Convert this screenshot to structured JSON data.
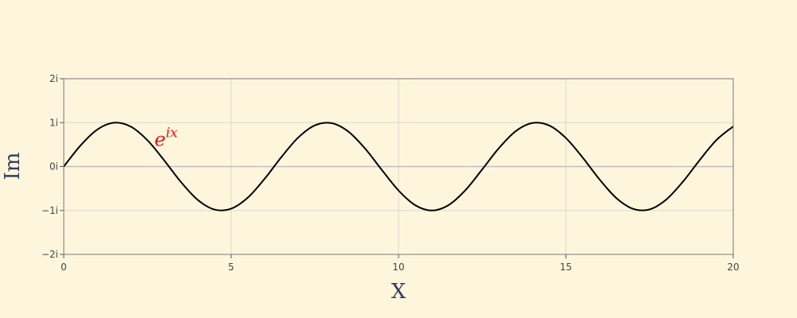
{
  "chart_data": {
    "type": "line",
    "title": "",
    "xlabel": "X",
    "ylabel": "Im",
    "xlim": [
      0,
      20
    ],
    "ylim": [
      -2,
      2
    ],
    "grid": true,
    "x_ticks": [
      0,
      5,
      10,
      15,
      20
    ],
    "x_tick_labels": [
      "0",
      "5",
      "10",
      "15",
      "20"
    ],
    "y_ticks": [
      -2,
      -1,
      0,
      1,
      2
    ],
    "y_tick_labels": [
      "−2i",
      "−1i",
      "0i",
      "1i",
      "2i"
    ],
    "series": [
      {
        "color": "#000000",
        "x": [
          0,
          0.5,
          1,
          1.5,
          2,
          2.5,
          3,
          3.5,
          4,
          4.5,
          5,
          5.5,
          6,
          6.5,
          7,
          7.5,
          8,
          8.5,
          9,
          9.5,
          10,
          10.5,
          11,
          11.5,
          12,
          12.5,
          13,
          13.5,
          14,
          14.5,
          15,
          15.5,
          16,
          16.5,
          17,
          17.5,
          18,
          18.5,
          19,
          19.5,
          20
        ],
        "y": [
          0,
          0.479,
          0.841,
          0.997,
          0.909,
          0.598,
          0.141,
          -0.351,
          -0.757,
          -0.978,
          -0.959,
          -0.706,
          -0.279,
          0.215,
          0.657,
          0.938,
          0.989,
          0.798,
          0.412,
          -0.075,
          -0.544,
          -0.88,
          -1.0,
          -0.875,
          -0.537,
          -0.066,
          0.42,
          0.804,
          0.991,
          0.935,
          0.65,
          0.206,
          -0.288,
          -0.712,
          -0.961,
          -0.976,
          -0.751,
          -0.342,
          0.15,
          0.605,
          0.913
        ]
      }
    ],
    "annotations": [
      {
        "base": "e",
        "superscript": "ix",
        "x": 2.9,
        "y": 0.8,
        "color": "#ee1111"
      }
    ]
  }
}
